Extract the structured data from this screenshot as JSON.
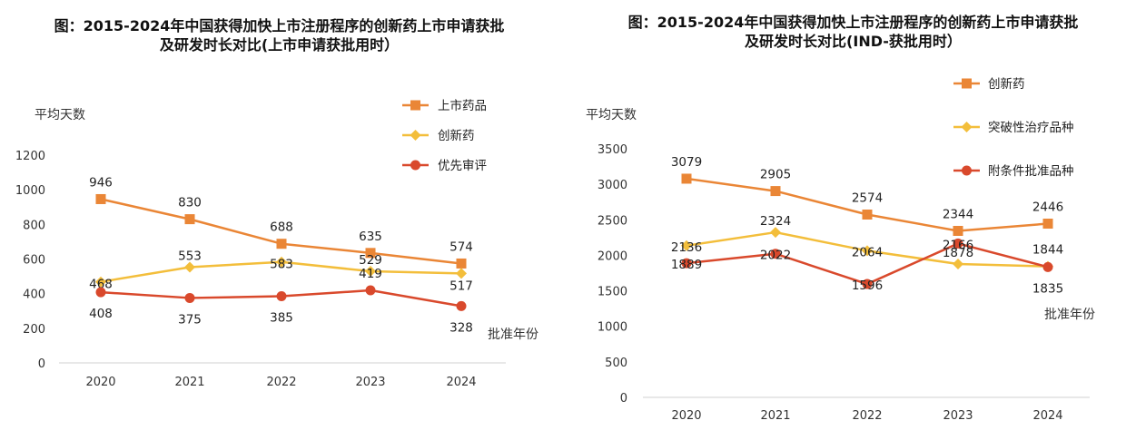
{
  "chart_data": [
    {
      "type": "line",
      "title_lines": [
        "图：2015-2024年中国获得加快上市注册程序的创新药上市申请获批",
        "及研发时长对比(上市申请获批用时）"
      ],
      "ylabel": "平均天数",
      "xlabel": "批准年份",
      "categories": [
        "2020",
        "2021",
        "2022",
        "2023",
        "2024"
      ],
      "yticks": [
        "0",
        "200",
        "400",
        "600",
        "800",
        "1000",
        "1200"
      ],
      "ylim": [
        0,
        1200
      ],
      "grid": false,
      "legend_position": "top-right",
      "series": [
        {
          "name": "上市药品",
          "values": [
            946,
            830,
            688,
            635,
            574
          ],
          "labels": [
            "946",
            "830",
            "688",
            "635",
            "574"
          ],
          "color": "#EA8636",
          "marker": "square"
        },
        {
          "name": "创新药",
          "values": [
            468,
            553,
            583,
            529,
            517
          ],
          "labels": [
            "468",
            "553",
            "583",
            "529",
            "517"
          ],
          "color": "#F3BE3B",
          "marker": "diamond"
        },
        {
          "name": "优先审评",
          "values": [
            408,
            375,
            385,
            419,
            328
          ],
          "labels": [
            "408",
            "375",
            "385",
            "419",
            "328"
          ],
          "color": "#D9492C",
          "marker": "circle"
        }
      ]
    },
    {
      "type": "line",
      "title_lines": [
        "图：2015-2024年中国获得加快上市注册程序的创新药上市申请获批",
        "及研发时长对比(IND-获批用时）"
      ],
      "ylabel": "平均天数",
      "xlabel": "批准年份",
      "categories": [
        "2020",
        "2021",
        "2022",
        "2023",
        "2024"
      ],
      "yticks": [
        "0",
        "500",
        "1000",
        "1500",
        "2000",
        "2500",
        "3000",
        "3500"
      ],
      "ylim": [
        0,
        3500
      ],
      "grid": false,
      "legend_position": "top-right",
      "series": [
        {
          "name": "创新药",
          "values": [
            3079,
            2905,
            2574,
            2344,
            2446
          ],
          "labels": [
            "3079",
            "2905",
            "2574",
            "2344",
            "2446"
          ],
          "color": "#EA8636",
          "marker": "square"
        },
        {
          "name": "突破性治疗品种",
          "values": [
            2136,
            2324,
            2064,
            1878,
            1844
          ],
          "labels": [
            "2136",
            "2324",
            "2064",
            "1878",
            "1844"
          ],
          "color": "#F3BE3B",
          "marker": "diamond"
        },
        {
          "name": "附条件批准品种",
          "values": [
            1889,
            2022,
            1596,
            2166,
            1835
          ],
          "labels": [
            "1889",
            "2022",
            "1596",
            "2166",
            "1835"
          ],
          "color": "#D9492C",
          "marker": "circle"
        }
      ]
    }
  ]
}
